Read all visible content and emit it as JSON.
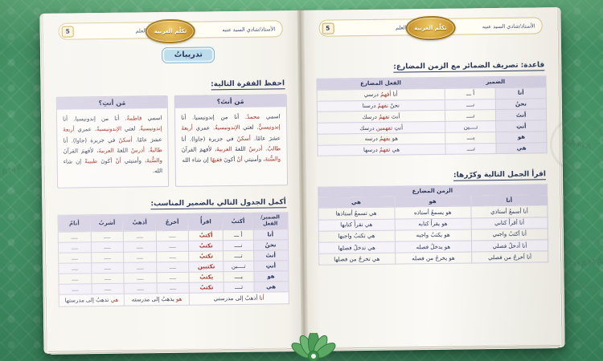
{
  "watermark": "NAMA",
  "colors": {
    "background_green": "#4e9e6f",
    "paper": "#faf8f3",
    "lavender_header": "#d6d1e3",
    "navy_text": "#2e3a5c",
    "red_text": "#a53228",
    "gold_badge": "#cf9c33",
    "blue_button": "#bcdcec"
  },
  "book_header": {
    "page_number": "5",
    "student_label": "طالب العلم",
    "brand": "تكلّم العربية",
    "teacher": "الأستاذ/شادي السيد عنبه"
  },
  "page_left": {
    "exercises_button": "تدريباتُ",
    "memorize_heading": "احفظ الفقرة التالية:",
    "who_boxes": [
      {
        "title": "مَن أنتَ؟",
        "paragraph": [
          {
            "t": "اسمي ",
            "c": "n"
          },
          {
            "t": "محمدٌ",
            "c": "r"
          },
          {
            "t": ". أنا من إندونيسيا. أنا ",
            "c": "n"
          },
          {
            "t": "إندونيسيٌّ",
            "c": "r"
          },
          {
            "t": ". لغتي ",
            "c": "n"
          },
          {
            "t": "الإندونيسيةُ",
            "c": "r"
          },
          {
            "t": ". عمري ",
            "c": "n"
          },
          {
            "t": "أربعةَ",
            "c": "r"
          },
          {
            "t": " عشرَ عامًا. ",
            "c": "n"
          },
          {
            "t": "أسكنُ",
            "c": "r"
          },
          {
            "t": " في جزيرة (جاوا). أنا ",
            "c": "n"
          },
          {
            "t": "طالبٌ",
            "c": "r"
          },
          {
            "t": ". ",
            "c": "n"
          },
          {
            "t": "أدرسُ",
            "c": "r"
          },
          {
            "t": " اللغةَ ",
            "c": "n"
          },
          {
            "t": "العربيةَ",
            "c": "r"
          },
          {
            "t": "، لأفهمَ القرآنَ ",
            "c": "n"
          },
          {
            "t": "والسُّنةَ",
            "c": "r"
          },
          {
            "t": "، وأمنيتي ",
            "c": "n"
          },
          {
            "t": "أنْ",
            "c": "r"
          },
          {
            "t": " أكونَ ",
            "c": "n"
          },
          {
            "t": "فقيهًا",
            "c": "r"
          },
          {
            "t": " إن شاء الله",
            "c": "n"
          }
        ]
      },
      {
        "title": "مَن أنتِ؟",
        "paragraph": [
          {
            "t": "اسمي ",
            "c": "n"
          },
          {
            "t": "فاطمةُ",
            "c": "r"
          },
          {
            "t": ". أنا من إندونيسيا. أنا ",
            "c": "n"
          },
          {
            "t": "إندونيسيةٌ",
            "c": "r"
          },
          {
            "t": ". لغتي ",
            "c": "n"
          },
          {
            "t": "الإندونيسيةُ",
            "c": "r"
          },
          {
            "t": ". عمري ",
            "c": "n"
          },
          {
            "t": "أربعةَ",
            "c": "r"
          },
          {
            "t": " عشرَ عامًا. ",
            "c": "n"
          },
          {
            "t": "أسكنُ",
            "c": "r"
          },
          {
            "t": " في جزيرة (جاوا). أنا ",
            "c": "n"
          },
          {
            "t": "طالبةٌ",
            "c": "r"
          },
          {
            "t": ". ",
            "c": "n"
          },
          {
            "t": "أدرسُ",
            "c": "r"
          },
          {
            "t": " اللغةَ ",
            "c": "n"
          },
          {
            "t": "العربيةَ",
            "c": "r"
          },
          {
            "t": "، لأفهمَ القرآنَ ",
            "c": "n"
          },
          {
            "t": "والسُّنةَ",
            "c": "r"
          },
          {
            "t": "، وأمنيتي ",
            "c": "n"
          },
          {
            "t": "أنْ",
            "c": "r"
          },
          {
            "t": " أكونَ ",
            "c": "n"
          },
          {
            "t": "طبيبةً",
            "c": "r"
          },
          {
            "t": " إن شاء الله.",
            "c": "n"
          }
        ]
      }
    ],
    "complete_heading": "أكمل الجدول التالي بالضمير المناسب:",
    "complete_table": {
      "corner_top": "الضمير/",
      "corner_bottom": "الفعل",
      "verb_headers": [
        "أكتبُ",
        "اقرأُ",
        "أخرجُ",
        "أذهبُ",
        "أشربُ",
        "أنامُ"
      ],
      "blank_mark": "ــــ",
      "rows": [
        {
          "pronoun": "أنا",
          "prefix": "أ ـــ",
          "example": "أكتبُ"
        },
        {
          "pronoun": "نحنُ",
          "prefix": "نــــ",
          "example": "نكتبُ"
        },
        {
          "pronoun": "أنتَ",
          "prefix": "تــــ",
          "example": "تكتبُ"
        },
        {
          "pronoun": "أنتِ",
          "prefix": "تــــين",
          "example": "تكتبين"
        },
        {
          "pronoun": "هو",
          "prefix": "يــــ",
          "example": "يكتبُ"
        },
        {
          "pronoun": "هي",
          "prefix": "تــــ",
          "example": "تكتبُ"
        }
      ],
      "footer": [
        {
          "spans": 3,
          "segments": [
            {
              "t": "أنا ",
              "c": "r"
            },
            {
              "t": "أذهبُ إلى مدرستي",
              "c": "n"
            }
          ]
        },
        {
          "spans": 2,
          "segments": [
            {
              "t": "هو ",
              "c": "r"
            },
            {
              "t": "يذهبُ إلى مدرسته",
              "c": "n"
            }
          ]
        },
        {
          "spans": 2,
          "segments": [
            {
              "t": "هي ",
              "c": "r"
            },
            {
              "t": "تذهبُ إلى مدرستها",
              "c": "n"
            }
          ]
        }
      ]
    }
  },
  "page_right": {
    "rule_heading": "قاعدة: تصريف الضمائر مع الزمن المضارع:",
    "grammar_table": {
      "pronoun_header": "الضمير",
      "verb_header": "الفعل المضارع",
      "rows": [
        {
          "pronoun": "أنا",
          "prefix": "أ ـــ",
          "sentence": [
            {
              "t": "أنا ",
              "c": "n"
            },
            {
              "t": "أفهمُ",
              "c": "r"
            },
            {
              "t": " درسي",
              "c": "n"
            }
          ]
        },
        {
          "pronoun": "نحنُ",
          "prefix": "نــــ",
          "sentence": [
            {
              "t": "نحنُ ",
              "c": "n"
            },
            {
              "t": "نفهمُ",
              "c": "r"
            },
            {
              "t": " درسنا",
              "c": "n"
            }
          ]
        },
        {
          "pronoun": "أنتَ",
          "prefix": "تــــ",
          "sentence": [
            {
              "t": "أنتَ ",
              "c": "n"
            },
            {
              "t": "تفهمُ",
              "c": "r"
            },
            {
              "t": " درسك",
              "c": "n"
            }
          ]
        },
        {
          "pronoun": "أنتِ",
          "prefix": "تــــين",
          "sentence": [
            {
              "t": "أنتِ ",
              "c": "n"
            },
            {
              "t": "تفهمين",
              "c": "r"
            },
            {
              "t": " درسك",
              "c": "n"
            }
          ]
        },
        {
          "pronoun": "هو",
          "prefix": "يــــ",
          "sentence": [
            {
              "t": "هو ",
              "c": "n"
            },
            {
              "t": "يفهمُ",
              "c": "r"
            },
            {
              "t": " درسه",
              "c": "n"
            }
          ]
        },
        {
          "pronoun": "هي",
          "prefix": "تــــ",
          "sentence": [
            {
              "t": "هي ",
              "c": "n"
            },
            {
              "t": "تفهمُ",
              "c": "r"
            },
            {
              "t": " درسها",
              "c": "n"
            }
          ]
        }
      ]
    },
    "read_heading": "اقرأ الجمل التالية وكرّرها:",
    "sentences_table": {
      "title": "الزمن المضارع",
      "columns": [
        "أنا",
        "هو",
        "هي"
      ],
      "rows": [
        [
          "أنا أسمعُ أستاذي",
          "هو يسمعُ أستاذه",
          "هي تسمعُ أستاذها"
        ],
        [
          "أنا أقرأُ كتابي",
          "هو يقرأُ كتابه",
          "هي تقرأُ كتابها"
        ],
        [
          "أنا أكتبُ واجبي",
          "هو يكتبُ واجبه",
          "هي تكتبُ واجبها"
        ],
        [
          "أنا أدخلُ فصلي",
          "هو يدخلُ فصله",
          "هي تدخلُ فصلها"
        ],
        [
          "أنا أخرجُ من فصلي",
          "هو يخرجُ من فصله",
          "هي تخرجُ من فصلها"
        ]
      ]
    }
  }
}
